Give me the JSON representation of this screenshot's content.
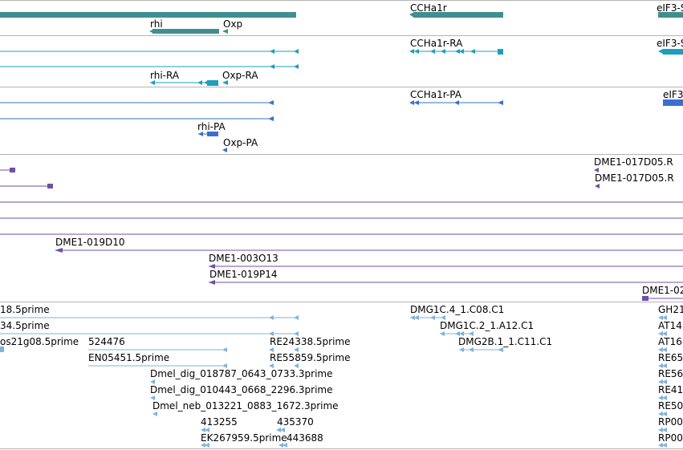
{
  "colors": {
    "gene": "#3f8f8f",
    "mrna": "#1a9fbf",
    "protein": "#3a6fcf",
    "clone": "#6f4fa8",
    "est": "#7fb3db",
    "separator": "#b4b4b4"
  },
  "gene_track": {
    "labels": [
      "rhi",
      "Oxp",
      "CCHa1r",
      "eIF3-S"
    ]
  },
  "transcript_track": {
    "labels": [
      "CCHa1r-RA",
      "eIF3-S",
      "rhi-RA",
      "Oxp-RA"
    ]
  },
  "protein_track": {
    "labels": [
      "CCHa1r-PA",
      "eIF3",
      "rhi-PA",
      "Oxp-PA"
    ]
  },
  "clone_track": {
    "labels": [
      "DME1-017D05.R",
      "DME1-017D05.R",
      "DME1-019D10",
      "DME1-003O13",
      "DME1-019P14",
      "DME1-02"
    ]
  },
  "est_track": {
    "labels": [
      "18.5prime",
      "DMG1C.4_1.C08.C1",
      "GH21",
      "34.5prime",
      "DMG1C.2_1.A12.C1",
      "AT14",
      "os21g08.5prime",
      "524476",
      "RE24338.5prime",
      "DMG2B.1_1.C11.C1",
      "AT16",
      "EN05451.5prime",
      "RE55859.5prime",
      "RE65",
      "Dmel_dig_018787_0643_0733.3prime",
      "RE56",
      "Dmel_dig_010443_0668_2296.3prime",
      "RE41",
      "Dmel_neb_013221_0883_1672.3prime",
      "RE50",
      "413255",
      "435370",
      "RP00",
      "EK267959.5prime",
      "443688",
      "RP00"
    ]
  }
}
